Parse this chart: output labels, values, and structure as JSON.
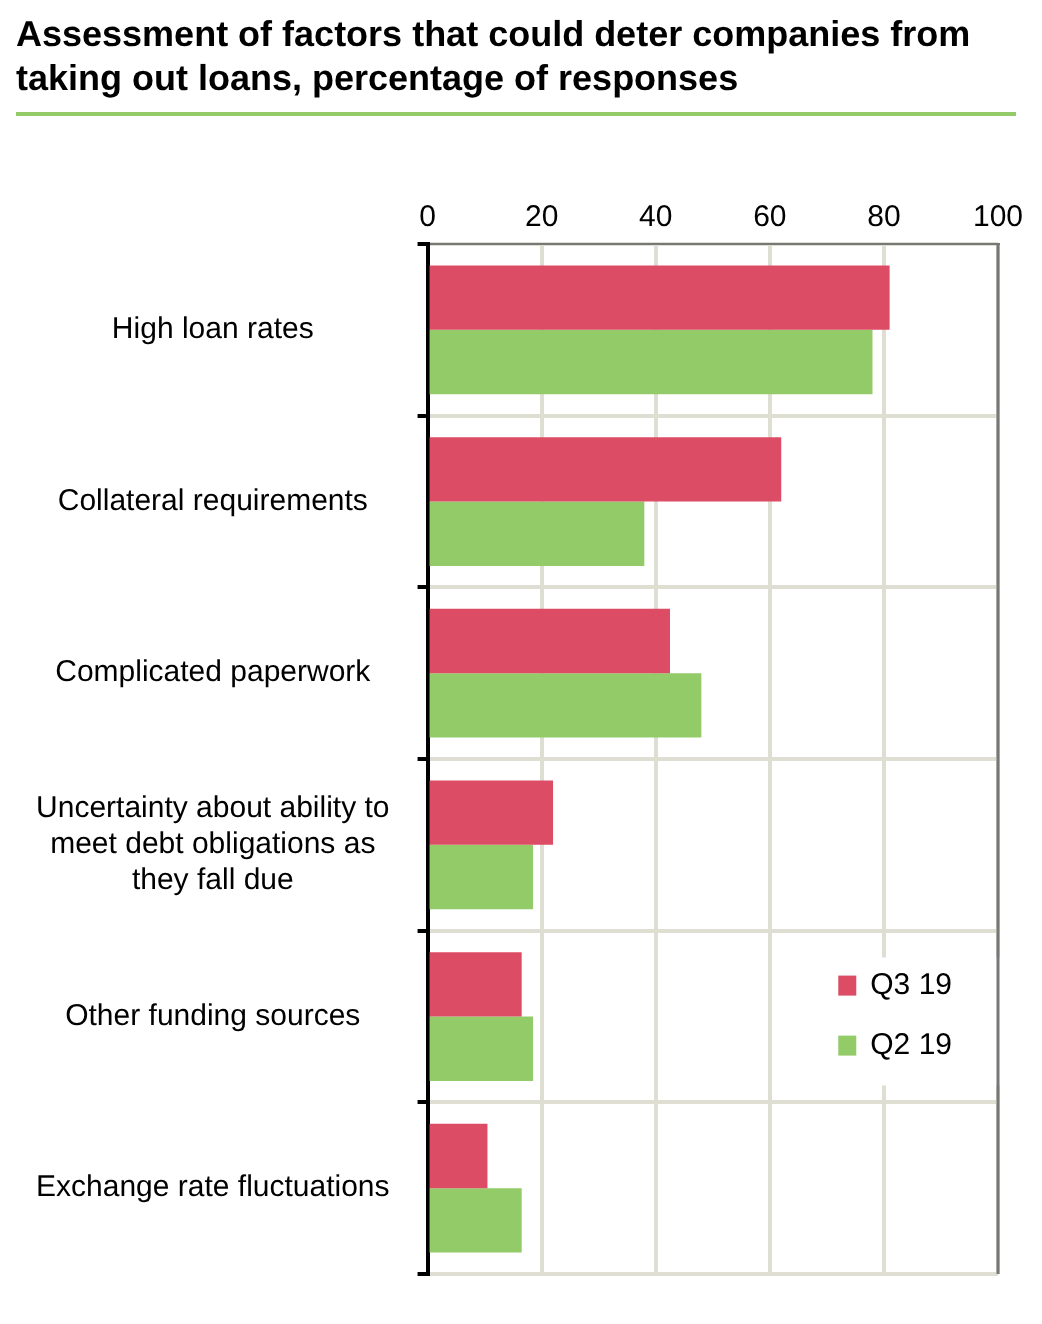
{
  "chart_data": {
    "type": "bar",
    "orientation": "horizontal",
    "title": "Assessment of factors that could deter companies from taking out loans, percentage of responses",
    "categories": [
      "High loan rates",
      "Collateral requirements",
      "Complicated paperwork",
      "Uncertainty about ability to meet debt obligations as they fall due",
      "Other funding sources",
      "Exchange rate fluctuations"
    ],
    "series": [
      {
        "name": "Q3 19",
        "color": "#dc4c65",
        "values": [
          81,
          62,
          42.5,
          22,
          16.5,
          10.5
        ]
      },
      {
        "name": "Q2 19",
        "color": "#92cb67",
        "values": [
          78,
          38,
          48,
          18.5,
          18.5,
          16.5
        ]
      }
    ],
    "xlim": [
      0,
      100
    ],
    "xticks": [
      0,
      20,
      40,
      60,
      80,
      100
    ],
    "grid": true,
    "legend": "bottom right"
  }
}
